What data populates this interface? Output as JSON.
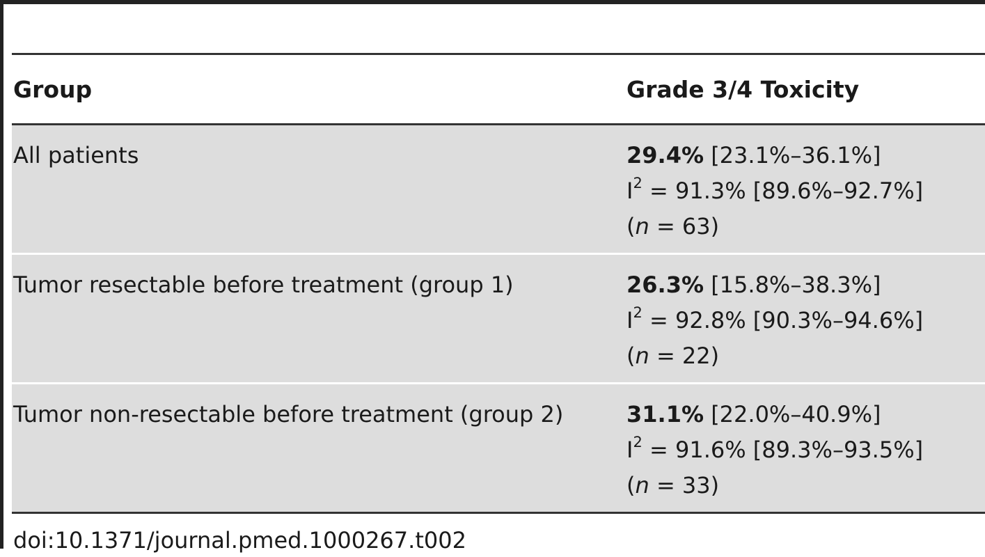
{
  "table": {
    "headers": [
      "Group",
      "Grade 3/4 Toxicity"
    ],
    "rows": [
      {
        "group": "All patients",
        "estimate": "29.4%",
        "ci": "[23.1%–36.1%]",
        "i2_symbol": "I",
        "i2_exp": "2",
        "i2_text": " = 91.3% [89.6%–92.7%]",
        "n_open": "(",
        "n_label": "n",
        "n_text": " = 63)"
      },
      {
        "group": "Tumor resectable before treatment (group 1)",
        "estimate": "26.3%",
        "ci": "[15.8%–38.3%]",
        "i2_symbol": "I",
        "i2_exp": "2",
        "i2_text": " = 92.8% [90.3%–94.6%]",
        "n_open": "(",
        "n_label": "n",
        "n_text": " = 22)"
      },
      {
        "group": "Tumor non-resectable before treatment (group 2)",
        "estimate": "31.1%",
        "ci": "[22.0%–40.9%]",
        "i2_symbol": "I",
        "i2_exp": "2",
        "i2_text": " = 91.6% [89.3%–93.5%]",
        "n_open": "(",
        "n_label": "n",
        "n_text": " = 33)"
      }
    ]
  },
  "doi": "doi:10.1371/journal.pmed.1000267.t002",
  "colors": {
    "row_fill": "#dddddd",
    "rule": "#333333"
  }
}
